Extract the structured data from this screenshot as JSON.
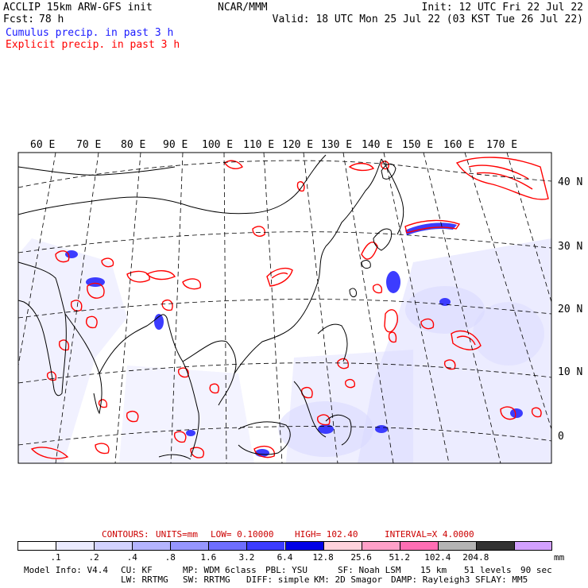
{
  "header": {
    "title_left": "ACCLIP 15km ARW-GFS init",
    "fcst_label": "Fcst:",
    "fcst_value": "78 h",
    "center": "NCAR/MMM",
    "init": "Init: 12 UTC Fri 22 Jul 22",
    "valid": "Valid: 18 UTC Mon 25 Jul 22 (03 KST Tue 26 Jul 22)",
    "legend_cumulus": "Cumulus precip. in past 3 h",
    "legend_explicit": "Explicit precip. in past 3 h"
  },
  "colors": {
    "cumulus": "#1a1aff",
    "explicit": "#ff0000",
    "coast": "#000000"
  },
  "map": {
    "lon_labels": [
      "60 E",
      "70 E",
      "80 E",
      "90 E",
      "100 E",
      "110 E",
      "120 E",
      "130 E",
      "140 E",
      "150 E",
      "160 E",
      "170 E"
    ],
    "lat_labels": [
      "40 N",
      "30 N",
      "20 N",
      "10 N",
      "0"
    ]
  },
  "contours": {
    "label": "CONTOURS:",
    "units": "UNITS=mm",
    "low": "LOW= 0.10000",
    "high": "HIGH= 102.40",
    "interval": "INTERVAL=X 4.0000"
  },
  "colorbar": {
    "colors": [
      "#ffffff",
      "#ebebff",
      "#d2d2ff",
      "#b4b4ff",
      "#9696ff",
      "#6e6eff",
      "#3c3cff",
      "#0000e6",
      "#ffd2dc",
      "#ffa0c8",
      "#ff6eb4",
      "#b4b4b4",
      "#323232",
      "#d2a0ff"
    ],
    "labels": [
      ".1",
      ".2",
      ".4",
      ".8",
      "1.6",
      "3.2",
      "6.4",
      "12.8",
      "25.6",
      "51.2",
      "102.4",
      "204.8"
    ],
    "units": "mm"
  },
  "footer": {
    "line1": [
      "Model Info: V4.4",
      "CU: KF",
      "MP: WDM 6class",
      "PBL: YSU",
      "SF: Noah LSM",
      "15 km",
      "51 levels",
      "90 sec"
    ],
    "line2": [
      "LW: RRTMG",
      "SW: RRTMG",
      "DIFF: simple",
      "KM: 2D Smagor",
      "DAMP: Rayleigh3",
      "SFLAY: MM5"
    ]
  }
}
